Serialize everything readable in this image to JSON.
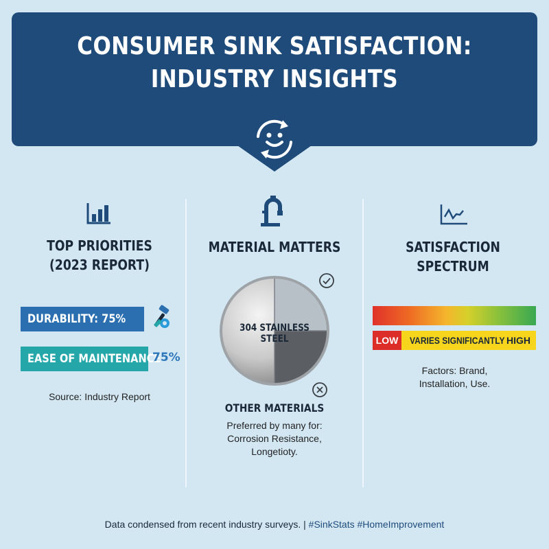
{
  "header": {
    "title_line1": "CONSUMER SINK SATISFACTION:",
    "title_line2": "INDUSTRY INSIGHTS",
    "icon": "smiley-refresh-icon"
  },
  "priorities": {
    "icon": "bar-chart-icon",
    "title_line1": "TOP PRIORITIES",
    "title_line2": "(2023 REPORT)",
    "items": [
      {
        "label": "DURABILITY: 75%",
        "value": 75,
        "icon": "tools-icon",
        "color": "#2b6fb0"
      },
      {
        "label": "EASE OF MAINTENANCE",
        "value_label": "75%",
        "value": 75,
        "color": "#25a6a9"
      }
    ],
    "source": "Source: Industry Report"
  },
  "material": {
    "icon": "faucet-icon",
    "title": "MATERIAL MATTERS",
    "disc_label": "304 STAINLESS STEEL",
    "check_icon": "check-circle-icon",
    "x_icon": "x-circle-icon",
    "other_title": "OTHER MATERIALS",
    "other_line1": "Preferred by many for:",
    "other_line2": "Corrosion Resistance,",
    "other_line3": "Longetioty."
  },
  "spectrum": {
    "icon": "line-chart-icon",
    "title_line1": "SATISFACTION",
    "title_line2": "SPECTRUM",
    "low": "LOW",
    "mid": "VARIES SIGNIFICANTLY",
    "high": "HIGH",
    "factors_line1": "Factors: Brand,",
    "factors_line2": "Installation, Use."
  },
  "footer": {
    "text": "Data condensed from recent industry surveys. | ",
    "tags": "#SinkStats #HomeImprovement"
  },
  "colors": {
    "banner": "#1f4b7b",
    "background": "#d3e7f3",
    "durability_bar": "#2b6fb0",
    "ease_bar": "#25a6a9"
  }
}
